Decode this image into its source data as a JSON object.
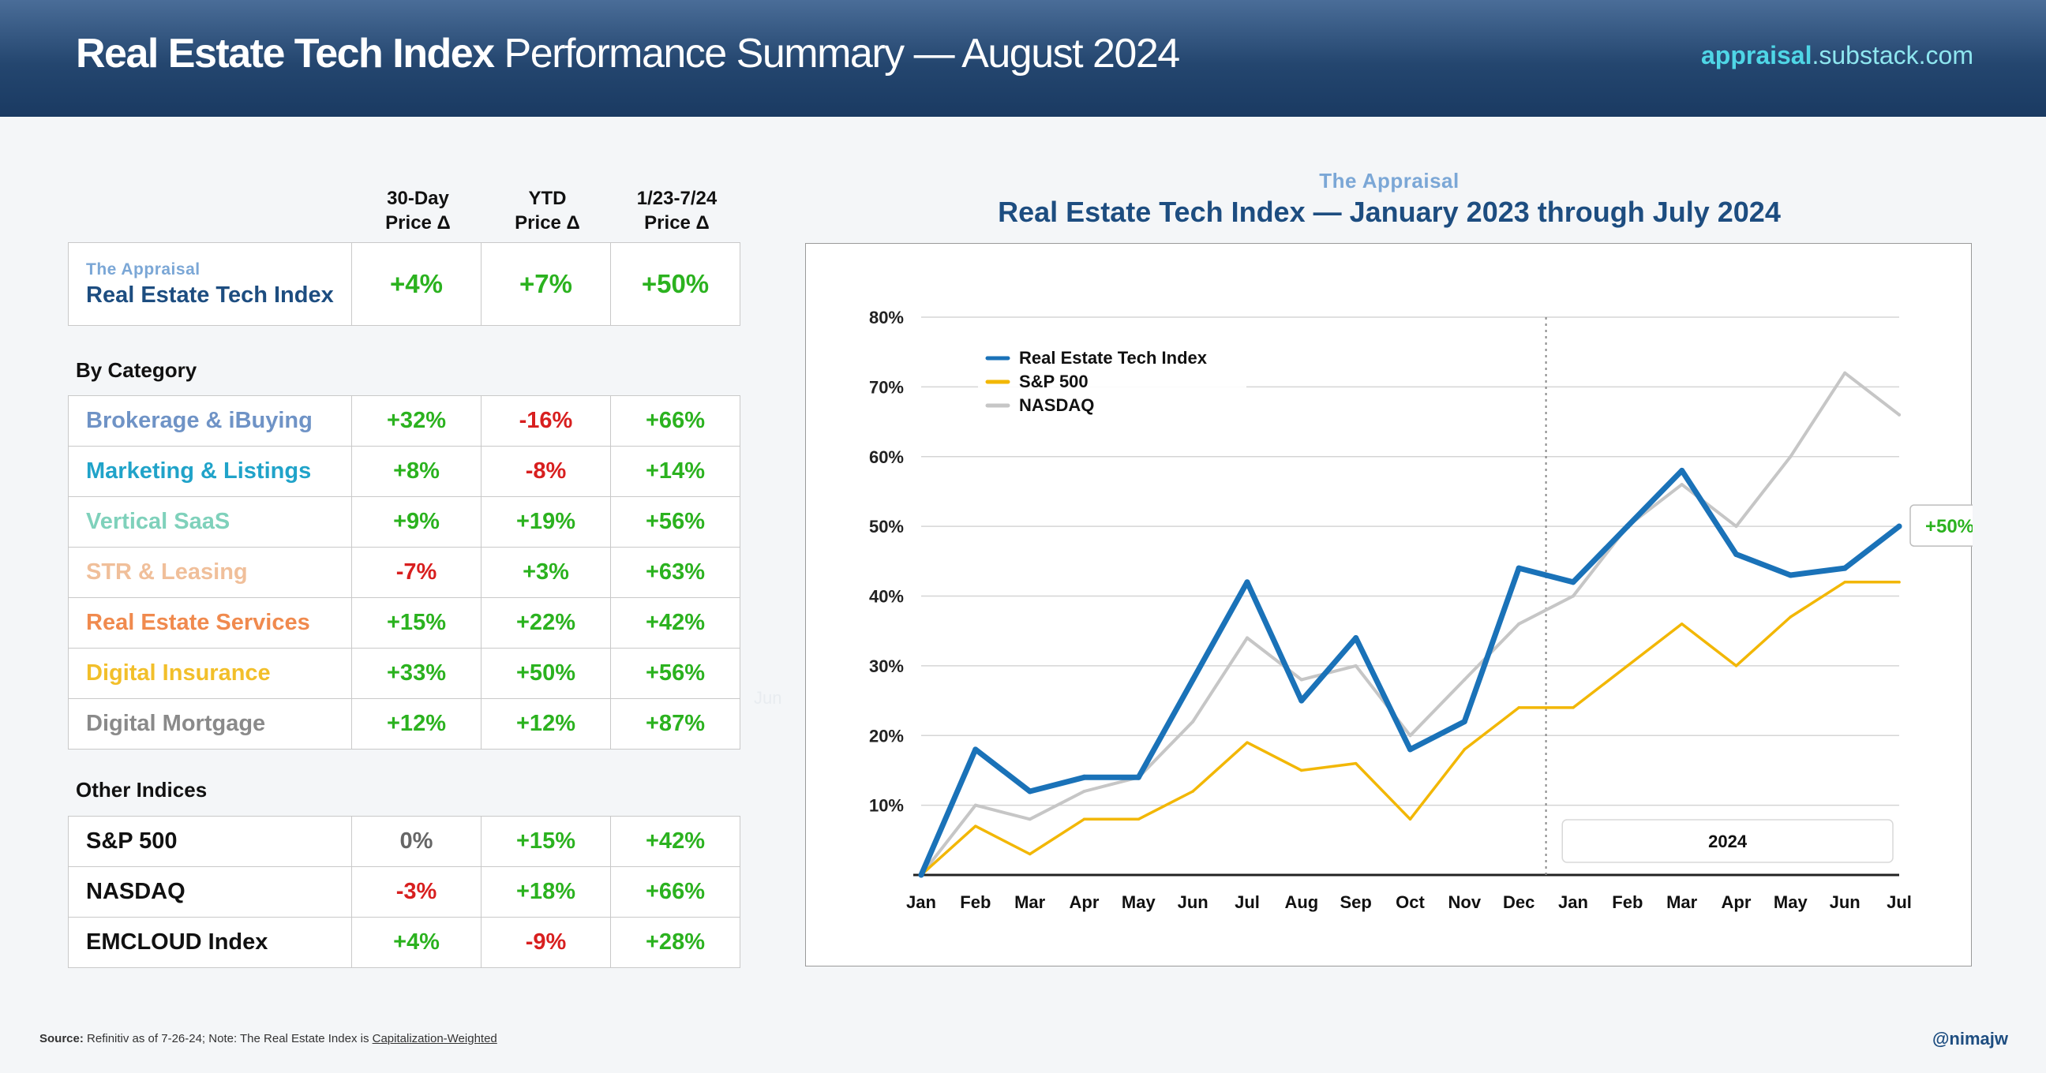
{
  "header": {
    "title_bold": "Real Estate Tech Index",
    "title_rest": "Performance Summary — August 2024",
    "site_bold": "appraisal",
    "site_tail": ".substack.com"
  },
  "table": {
    "columns": [
      "30-Day\nPrice Δ",
      "YTD\nPrice Δ",
      "1/23-7/24\nPrice Δ"
    ],
    "col1_l1": "30-Day",
    "col1_l2": "Price Δ",
    "col2_l1": "YTD",
    "col2_l2": "Price Δ",
    "col3_l1": "1/23-7/24",
    "col3_l2": "Price Δ",
    "index_row": {
      "kicker": "The Appraisal",
      "name": "Real Estate Tech Index",
      "d30": "+4%",
      "ytd": "+7%",
      "total": "+50%"
    },
    "category_label": "By Category",
    "categories": [
      {
        "name": "Brokerage & iBuying",
        "d30": "+32%",
        "ytd": "-16%",
        "total": "+66%",
        "color": "#6f93c6"
      },
      {
        "name": "Marketing & Listings",
        "d30": "+8%",
        "ytd": "-8%",
        "total": "+14%",
        "color": "#20a3c9"
      },
      {
        "name": "Vertical SaaS",
        "d30": "+9%",
        "ytd": "+19%",
        "total": "+56%",
        "color": "#7fd1bb"
      },
      {
        "name": "STR & Leasing",
        "d30": "-7%",
        "ytd": "+3%",
        "total": "+63%",
        "color": "#f0bf9a"
      },
      {
        "name": "Real Estate Services",
        "d30": "+15%",
        "ytd": "+22%",
        "total": "+42%",
        "color": "#f08a4e"
      },
      {
        "name": "Digital Insurance",
        "d30": "+33%",
        "ytd": "+50%",
        "total": "+56%",
        "color": "#f2bf2a"
      },
      {
        "name": "Digital Mortgage",
        "d30": "+12%",
        "ytd": "+12%",
        "total": "+87%",
        "color": "#8a8a8a"
      }
    ],
    "other_label": "Other Indices",
    "others": [
      {
        "name": "S&P 500",
        "d30": "0%",
        "ytd": "+15%",
        "total": "+42%"
      },
      {
        "name": "NASDAQ",
        "d30": "-3%",
        "ytd": "+18%",
        "total": "+66%"
      },
      {
        "name": "EMCLOUD Index",
        "d30": "+4%",
        "ytd": "-9%",
        "total": "+28%"
      }
    ]
  },
  "chart_header": {
    "kicker": "The Appraisal",
    "title": "Real Estate Tech Index — January 2023 through July 2024"
  },
  "chart_data": {
    "type": "line",
    "title": "Real Estate Tech Index — January 2023 through July 2024",
    "x": [
      "Jan",
      "Feb",
      "Mar",
      "Apr",
      "May",
      "Jun",
      "Jul",
      "Aug",
      "Sep",
      "Oct",
      "Nov",
      "Dec",
      "Jan",
      "Feb",
      "Mar",
      "Apr",
      "May",
      "Jun",
      "Jul"
    ],
    "year_marker": "2024",
    "ylim": [
      0,
      80
    ],
    "yticks": [
      "10%",
      "20%",
      "30%",
      "40%",
      "50%",
      "60%",
      "70%",
      "80%"
    ],
    "grid": true,
    "legend_position": "top-left",
    "series": [
      {
        "name": "Real Estate Tech Index",
        "color": "#1a72b8",
        "values": [
          0,
          18,
          12,
          14,
          14,
          28,
          42,
          25,
          34,
          18,
          22,
          44,
          42,
          50,
          58,
          46,
          43,
          44,
          50
        ]
      },
      {
        "name": "S&P 500",
        "color": "#f2b705",
        "values": [
          0,
          7,
          3,
          8,
          8,
          12,
          19,
          15,
          16,
          8,
          18,
          24,
          24,
          30,
          36,
          30,
          37,
          42,
          42
        ]
      },
      {
        "name": "NASDAQ",
        "color": "#c6c6c6",
        "values": [
          0,
          10,
          8,
          12,
          14,
          22,
          34,
          28,
          30,
          20,
          28,
          36,
          40,
          50,
          56,
          50,
          60,
          72,
          66
        ]
      }
    ],
    "end_label": "+50%"
  },
  "ghost_label": "Jun",
  "footer": {
    "source_bold": "Source:",
    "source_text": "Refinitiv as of 7-26-24; Note: The Real Estate Index is",
    "source_link": "Capitalization-Weighted",
    "handle": "@nimajw"
  }
}
